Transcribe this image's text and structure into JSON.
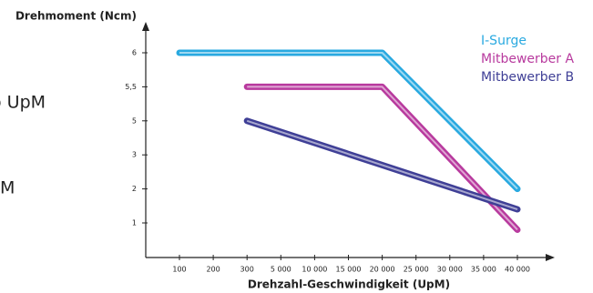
{
  "fragments": [
    "o UpM",
    "pM"
  ],
  "chart_data": {
    "type": "line",
    "y_label": "Drehmoment (Ncm)",
    "x_label": "Drehzahl-Geschwindigkeit (UpM)",
    "yticks": [
      1,
      2,
      3,
      {
        "value": 5,
        "label": "5"
      },
      {
        "value": 5.5,
        "label": "5,5"
      },
      6
    ],
    "xticks": [
      100,
      200,
      300,
      {
        "value": 5000,
        "label": "5 000"
      },
      {
        "value": 10000,
        "label": "10 000"
      },
      {
        "value": 15000,
        "label": "15 000"
      },
      {
        "value": 20000,
        "label": "20 000"
      },
      {
        "value": 25000,
        "label": "25 000"
      },
      {
        "value": 30000,
        "label": "30 000"
      },
      {
        "value": 35000,
        "label": "35 000"
      },
      {
        "value": 40000,
        "label": "40 000"
      }
    ],
    "series": [
      {
        "name": "I-Surge",
        "color": "#29a9e0",
        "x": [
          100,
          20000,
          40000
        ],
        "values": [
          6,
          6,
          2
        ]
      },
      {
        "name": "Mitbewerber A",
        "color": "#b83a9e",
        "x": [
          300,
          20000,
          40000
        ],
        "values": [
          5.5,
          5.5,
          0.8
        ]
      },
      {
        "name": "Mitbewerber B",
        "color": "#3f3f96",
        "x": [
          300,
          40000
        ],
        "values": [
          5,
          1.4
        ]
      }
    ]
  }
}
